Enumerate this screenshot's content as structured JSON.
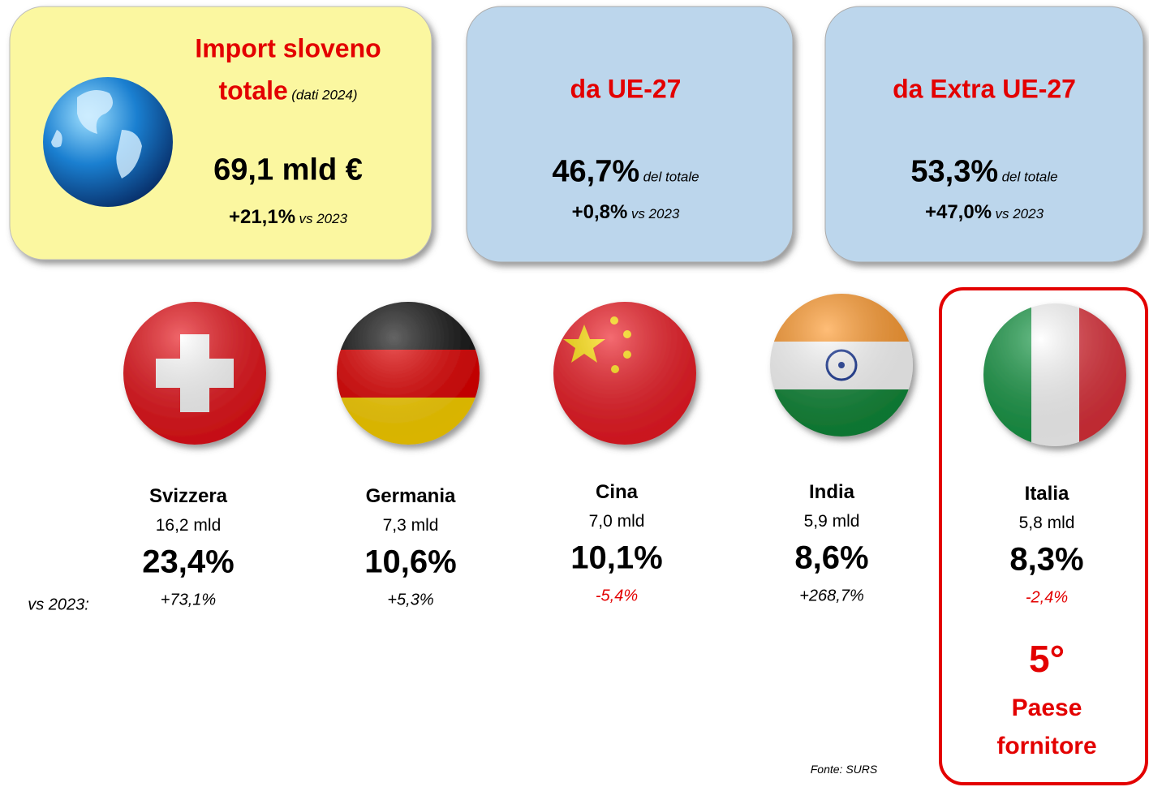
{
  "cards": [
    {
      "title": "Import sloveno",
      "title_line2": "totale",
      "note": "(dati 2024)",
      "value": "69,1 mld €",
      "change": "+21,1%",
      "change_note": "vs 2023"
    },
    {
      "title": "da UE-27",
      "value": "46,7%",
      "value_note": "del totale",
      "change": "+0,8%",
      "change_note": "vs 2023"
    },
    {
      "title": "da Extra UE-27",
      "value": "53,3%",
      "value_note": "del totale",
      "change": "+47,0%",
      "change_note": "vs 2023"
    }
  ],
  "vs_label": "vs 2023:",
  "countries": [
    {
      "name": "Svizzera",
      "amount": "16,2 mld",
      "share": "23,4%",
      "change": "+73,1%"
    },
    {
      "name": "Germania",
      "amount": "7,3 mld",
      "share": "10,6%",
      "change": "+5,3%"
    },
    {
      "name": "Cina",
      "amount": "7,0 mld",
      "share": "10,1%",
      "change": "-5,4%"
    },
    {
      "name": "India",
      "amount": "5,9 mld",
      "share": "8,6%",
      "change": "+268,7%"
    },
    {
      "name": "Italia",
      "amount": "5,8 mld",
      "share": "8,3%",
      "change": "-2,4%"
    }
  ],
  "rank": "5°",
  "rank_label_line1": "Paese",
  "rank_label_line2": "fornitore",
  "source": "Fonte: SURS"
}
